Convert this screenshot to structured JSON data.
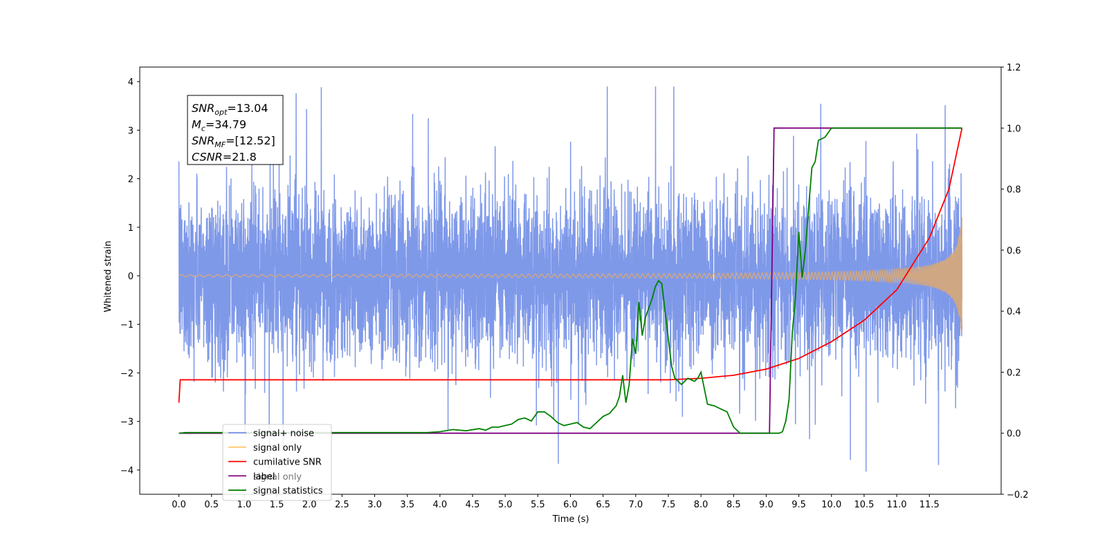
{
  "chart_data": {
    "type": "line",
    "xlabel": "Time (s)",
    "ylabel": "Whitened strain",
    "xlim": [
      -0.6,
      12.6
    ],
    "ylim": [
      -4.5,
      4.3
    ],
    "y2lim": [
      -0.2,
      1.2
    ],
    "x_ticks": [
      "0.0",
      "0.5",
      "1.0",
      "1.5",
      "2.0",
      "2.5",
      "3.0",
      "3.5",
      "4.0",
      "4.5",
      "5.0",
      "5.5",
      "6.0",
      "6.5",
      "7.0",
      "7.5",
      "8.0",
      "8.5",
      "9.0",
      "9.5",
      "10.0",
      "10.5",
      "11.0",
      "11.5"
    ],
    "y_ticks": [
      "4",
      "3",
      "2",
      "1",
      "0",
      "−1",
      "−2",
      "−3",
      "−4"
    ],
    "y2_ticks": [
      "1.2",
      "1.0",
      "0.8",
      "0.6",
      "0.4",
      "0.2",
      "0.0",
      "−0.2"
    ],
    "annotations": [
      {
        "sym": "SNR",
        "sub": "opt",
        "value": "=13.04"
      },
      {
        "sym": "M",
        "sub": "c",
        "value": "=34.79"
      },
      {
        "sym": "SNR",
        "sub": "MF",
        "value": "=[12.52]"
      },
      {
        "sym": "CSNR",
        "sub": "",
        "value": "=21.8"
      }
    ],
    "legend": {
      "position": "lower-left",
      "entries": [
        {
          "label": "signal+ noise",
          "color": "#7893e8"
        },
        {
          "label": "signal only",
          "color": "#ffc870"
        },
        {
          "label": "cumilative SNR",
          "color": "#ff0000"
        },
        {
          "label": "label",
          "color": "#800080"
        },
        {
          "label": "signal statistics",
          "color": "#008000"
        }
      ],
      "hidden_label": "signal only"
    },
    "series": [
      {
        "name": "signal+ noise",
        "axis": "left",
        "color": "#7893e8",
        "x_range": [
          0,
          12
        ],
        "noise_std": 1.0,
        "y_range_observed": [
          -4.1,
          3.9
        ]
      },
      {
        "name": "signal only",
        "axis": "left",
        "color": "#d8a878",
        "x_range": [
          0,
          12
        ],
        "peak_amplitude": 1.5
      },
      {
        "name": "cumilative SNR",
        "axis": "right",
        "color": "#ff0000",
        "x": [
          0.0,
          0.02,
          7.5,
          8.0,
          8.5,
          9.0,
          9.5,
          10.0,
          10.5,
          11.0,
          11.5,
          11.8,
          12.0
        ],
        "y": [
          0.1,
          0.175,
          0.175,
          0.18,
          0.19,
          0.21,
          0.245,
          0.3,
          0.37,
          0.47,
          0.64,
          0.8,
          1.0
        ]
      },
      {
        "name": "label",
        "axis": "right",
        "color": "#800080",
        "x": [
          0.0,
          9.05,
          9.12,
          12.0
        ],
        "y": [
          0.0,
          0.0,
          1.0,
          1.0
        ]
      },
      {
        "name": "signal statistics",
        "axis": "right",
        "color": "#008000",
        "x": [
          0.0,
          0.1,
          3.8,
          4.0,
          4.2,
          4.4,
          4.6,
          4.7,
          4.8,
          4.9,
          5.0,
          5.1,
          5.2,
          5.3,
          5.4,
          5.5,
          5.6,
          5.7,
          5.8,
          5.9,
          6.0,
          6.1,
          6.2,
          6.3,
          6.4,
          6.5,
          6.6,
          6.7,
          6.75,
          6.8,
          6.85,
          6.9,
          6.95,
          7.0,
          7.05,
          7.1,
          7.15,
          7.2,
          7.25,
          7.3,
          7.35,
          7.4,
          7.45,
          7.5,
          7.55,
          7.6,
          7.7,
          7.8,
          7.9,
          7.95,
          8.0,
          8.1,
          8.2,
          8.3,
          8.4,
          8.5,
          8.6,
          8.8,
          9.0,
          9.2,
          9.25,
          9.3,
          9.35,
          9.4,
          9.45,
          9.5,
          9.55,
          9.6,
          9.65,
          9.7,
          9.75,
          9.8,
          9.9,
          10.0,
          10.1,
          10.5,
          11.0,
          12.0
        ],
        "y": [
          0.0,
          0.002,
          0.002,
          0.005,
          0.012,
          0.008,
          0.015,
          0.01,
          0.02,
          0.02,
          0.025,
          0.03,
          0.045,
          0.05,
          0.04,
          0.07,
          0.07,
          0.055,
          0.035,
          0.025,
          0.03,
          0.035,
          0.02,
          0.015,
          0.035,
          0.055,
          0.065,
          0.09,
          0.12,
          0.19,
          0.1,
          0.16,
          0.31,
          0.26,
          0.43,
          0.32,
          0.38,
          0.41,
          0.44,
          0.48,
          0.5,
          0.49,
          0.4,
          0.31,
          0.22,
          0.18,
          0.16,
          0.18,
          0.17,
          0.18,
          0.2,
          0.095,
          0.09,
          0.08,
          0.07,
          0.02,
          0.0,
          0.0,
          0.0,
          0.0,
          0.005,
          0.04,
          0.11,
          0.33,
          0.45,
          0.66,
          0.51,
          0.6,
          0.74,
          0.87,
          0.89,
          0.96,
          0.97,
          1.0,
          1.0,
          1.0,
          1.0,
          1.0
        ]
      }
    ]
  }
}
